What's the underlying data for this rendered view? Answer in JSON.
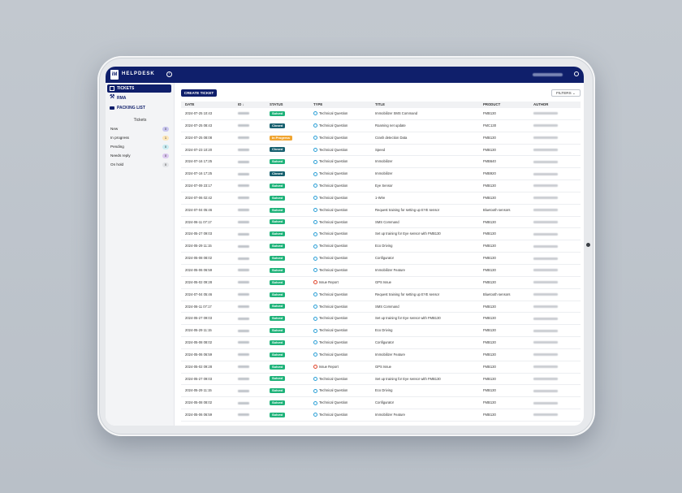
{
  "app": {
    "brand": "HELPDESK",
    "logo": "iM"
  },
  "sidebar": {
    "nav": [
      {
        "label": "TICKETS",
        "icon": "grid-icon",
        "active": true
      },
      {
        "label": "RMA",
        "icon": "wrench-icon",
        "active": false
      },
      {
        "label": "PACKING LIST",
        "icon": "truck-icon",
        "active": false
      }
    ],
    "section_title": "Tickets",
    "filters": [
      {
        "label": "New",
        "count": "0",
        "color": "#c9c6f0"
      },
      {
        "label": "In progress",
        "count": "1",
        "color": "#fde6b8"
      },
      {
        "label": "Pending",
        "count": "0",
        "color": "#c9ecf2"
      },
      {
        "label": "Needs reply",
        "count": "0",
        "color": "#dcc9f0"
      },
      {
        "label": "On hold",
        "count": "0",
        "color": "#e3e5e8"
      }
    ]
  },
  "toolbar": {
    "create_label": "CREATE TICKET",
    "filters_label": "FILTERS"
  },
  "table": {
    "columns": [
      "DATE",
      "ID",
      "STATUS",
      "TYPE",
      "TITLE",
      "PRODUCT",
      "AUTHOR"
    ],
    "status_colors": {
      "Solved": "#1fb37a",
      "Closed": "#17606f",
      "In Progress": "#f0a531"
    },
    "rows": [
      {
        "date": "2024-07-25 10:43",
        "status": "Solved",
        "type": "Technical Question",
        "title": "Immobilizer SMS Command",
        "product": "FMB130"
      },
      {
        "date": "2024-07-25 08:43",
        "status": "Closed",
        "type": "Technical Question",
        "title": "Roaming net update",
        "product": "FMC130"
      },
      {
        "date": "2024-07-25 08:08",
        "status": "In Progress",
        "type": "Technical Question",
        "title": "Crash detection Data",
        "product": "FMB130"
      },
      {
        "date": "2024-07-23 10:20",
        "status": "Closed",
        "type": "Technical Question",
        "title": "Speed",
        "product": "FMB130"
      },
      {
        "date": "2024-07-16 17:25",
        "status": "Solved",
        "type": "Technical Question",
        "title": "Immobilizer",
        "product": "FMB640"
      },
      {
        "date": "2024-07-16 17:25",
        "status": "Closed",
        "type": "Technical Question",
        "title": "Immobilizer",
        "product": "FMB920"
      },
      {
        "date": "2024-07-09 23:17",
        "status": "Solved",
        "type": "Technical Question",
        "title": "Eye Sensor",
        "product": "FMB130"
      },
      {
        "date": "2024-07-06 02:42",
        "status": "Solved",
        "type": "Technical Question",
        "title": "1-Wire",
        "product": "FMB130"
      },
      {
        "date": "2024-07-04 05:46",
        "status": "Solved",
        "type": "Technical Question",
        "title": "Request training for setting up EYE sensor",
        "product": "Bluetooth sensors"
      },
      {
        "date": "2024-06-11 07:17",
        "status": "Solved",
        "type": "Technical Question",
        "title": "SMS Command",
        "product": "FMB130"
      },
      {
        "date": "2024-05-27 09:03",
        "status": "Solved",
        "type": "Technical Question",
        "title": "Set up training for Eye sensor with FMB130",
        "product": "FMB130"
      },
      {
        "date": "2024-05-29 11:15",
        "status": "Solved",
        "type": "Technical Question",
        "title": "Eco Driving",
        "product": "FMB130"
      },
      {
        "date": "2024-05-08 08:02",
        "status": "Solved",
        "type": "Technical Question",
        "title": "Configurator",
        "product": "FMB130"
      },
      {
        "date": "2024-05-06 06:59",
        "status": "Solved",
        "type": "Technical Question",
        "title": "Immobilizer Feature",
        "product": "FMB130"
      },
      {
        "date": "2024-05-02 09:28",
        "status": "Solved",
        "type": "Issue Report",
        "title": "GPS Issue",
        "product": "FMB130"
      },
      {
        "date": "2024-07-04 05:46",
        "status": "Solved",
        "type": "Technical Question",
        "title": "Request training for setting up EYE sensor",
        "product": "Bluetooth sensors"
      },
      {
        "date": "2024-06-11 07:17",
        "status": "Solved",
        "type": "Technical Question",
        "title": "SMS Command",
        "product": "FMB130"
      },
      {
        "date": "2024-05-27 09:03",
        "status": "Solved",
        "type": "Technical Question",
        "title": "Set up training for Eye sensor with FMB130",
        "product": "FMB130"
      },
      {
        "date": "2024-05-29 11:15",
        "status": "Solved",
        "type": "Technical Question",
        "title": "Eco Driving",
        "product": "FMB130"
      },
      {
        "date": "2024-05-08 08:02",
        "status": "Solved",
        "type": "Technical Question",
        "title": "Configurator",
        "product": "FMB130"
      },
      {
        "date": "2024-05-06 06:59",
        "status": "Solved",
        "type": "Technical Question",
        "title": "Immobilizer Feature",
        "product": "FMB130"
      },
      {
        "date": "2024-05-02 09:28",
        "status": "Solved",
        "type": "Issue Report",
        "title": "GPS Issue",
        "product": "FMB130"
      },
      {
        "date": "2024-05-27 09:03",
        "status": "Solved",
        "type": "Technical Question",
        "title": "Set up training for Eye sensor with FMB130",
        "product": "FMB130"
      },
      {
        "date": "2024-05-29 11:15",
        "status": "Solved",
        "type": "Technical Question",
        "title": "Eco Driving",
        "product": "FMB130"
      },
      {
        "date": "2024-05-08 08:02",
        "status": "Solved",
        "type": "Technical Question",
        "title": "Configurator",
        "product": "FMB130"
      },
      {
        "date": "2024-05-06 06:59",
        "status": "Solved",
        "type": "Technical Question",
        "title": "Immobilizer Feature",
        "product": "FMB130"
      }
    ]
  }
}
